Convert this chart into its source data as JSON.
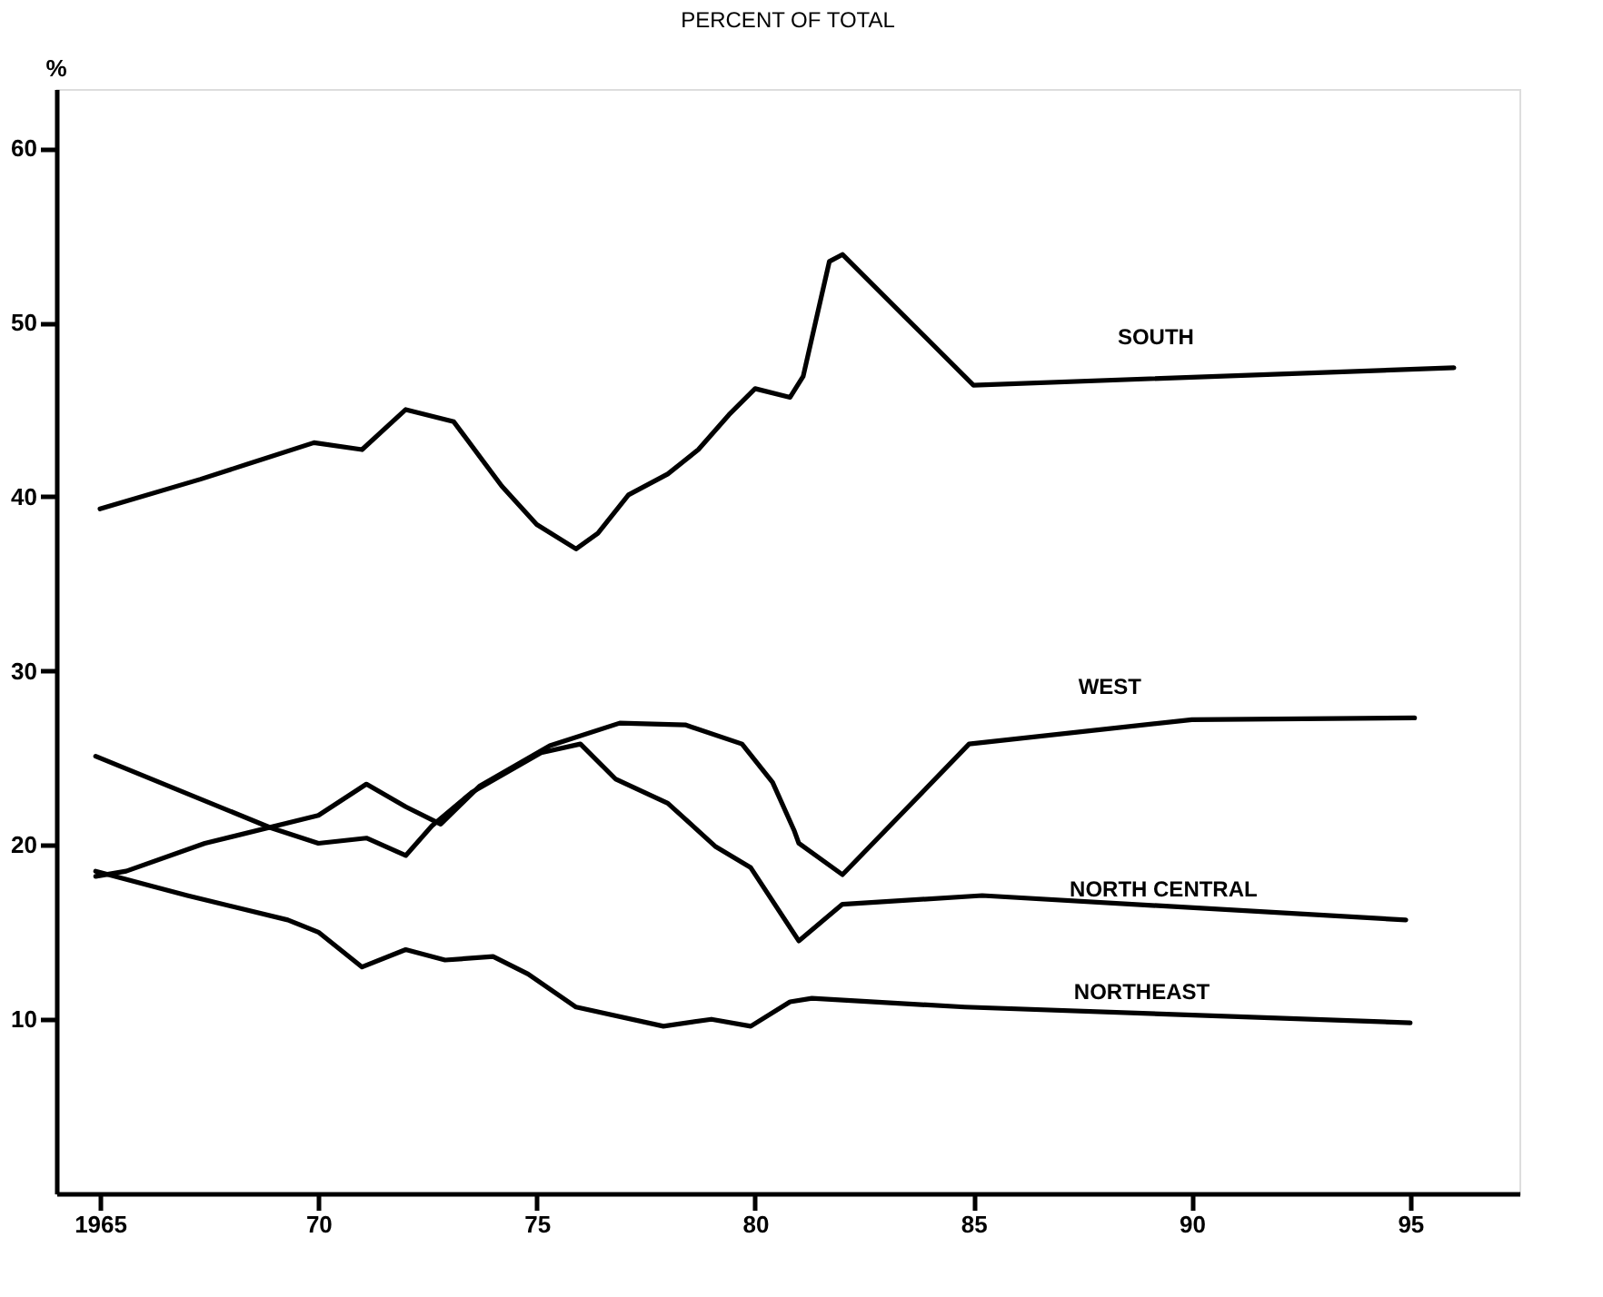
{
  "chart_data": {
    "type": "line",
    "title": "PERCENT OF TOTAL",
    "ylabel": "%",
    "xlim": [
      1964,
      1997.5
    ],
    "xticks": [
      1965,
      {
        "value": 1970,
        "label": "70"
      },
      {
        "value": 1975,
        "label": "75"
      },
      {
        "value": 1980,
        "label": "80"
      },
      {
        "value": 1985,
        "label": "85"
      },
      {
        "value": 1990,
        "label": "90"
      },
      {
        "value": 1995,
        "label": "95"
      }
    ],
    "ylim": [
      0,
      63.4
    ],
    "yticks": [
      10,
      20,
      30,
      40,
      50,
      60
    ],
    "grid": false,
    "legend": false,
    "marker": "none",
    "line_style": "solid",
    "series": [
      {
        "name": "SOUTH",
        "color": "#000000",
        "x": [
          1965,
          1967.3,
          1969.9,
          1971.0,
          1972.0,
          1973.1,
          1974.2,
          1975.0,
          1975.9,
          1976.4,
          1977.1,
          1978.0,
          1978.7,
          1979.4,
          1980.0,
          1980.8,
          1981.1,
          1981.7,
          1982.0,
          1983.4,
          1985.0,
          1996.0
        ],
        "values": [
          39.3,
          41.0,
          43.1,
          42.7,
          45.0,
          44.3,
          40.6,
          38.4,
          37.0,
          37.9,
          40.1,
          41.3,
          42.7,
          44.7,
          46.2,
          45.7,
          46.9,
          53.5,
          53.9,
          50.4,
          46.4,
          47.4
        ]
      },
      {
        "name": "WEST",
        "color": "#000000",
        "x": [
          1964.9,
          1965.6,
          1967.4,
          1970.0,
          1971.1,
          1972.0,
          1972.8,
          1973.7,
          1975.3,
          1976.9,
          1978.4,
          1979.7,
          1980.4,
          1980.9,
          1981.0,
          1982.0,
          1984.9,
          1990.0,
          1995.1
        ],
        "values": [
          18.2,
          18.5,
          20.1,
          21.7,
          23.5,
          22.2,
          21.2,
          23.4,
          25.7,
          27.0,
          26.9,
          25.8,
          23.6,
          20.8,
          20.1,
          18.3,
          25.8,
          27.2,
          27.3
        ]
      },
      {
        "name": "NORTH CENTRAL",
        "color": "#000000",
        "x": [
          1964.9,
          1968.9,
          1970.0,
          1971.1,
          1972.0,
          1972.6,
          1973.5,
          1975.1,
          1976.0,
          1976.8,
          1978.0,
          1979.1,
          1979.9,
          1981.0,
          1982.0,
          1985.2,
          1994.9
        ],
        "values": [
          25.1,
          21.0,
          20.1,
          20.4,
          19.4,
          21.1,
          23.0,
          25.3,
          25.8,
          23.8,
          22.4,
          19.9,
          18.7,
          14.5,
          16.6,
          17.1,
          15.7
        ]
      },
      {
        "name": "NORTHEAST",
        "color": "#000000",
        "x": [
          1964.9,
          1967.0,
          1969.3,
          1970.0,
          1971.0,
          1972.0,
          1972.9,
          1974.0,
          1974.8,
          1975.9,
          1977.9,
          1979.0,
          1979.9,
          1980.8,
          1981.3,
          1984.8,
          1995.0
        ],
        "values": [
          18.5,
          17.1,
          15.7,
          15.0,
          13.0,
          14.0,
          13.4,
          13.6,
          12.6,
          10.7,
          9.6,
          10.0,
          9.6,
          11.0,
          11.2,
          10.7,
          9.8
        ]
      }
    ]
  }
}
